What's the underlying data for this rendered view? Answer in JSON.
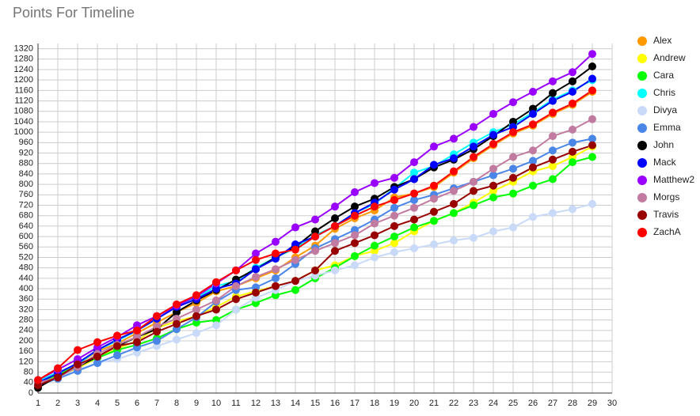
{
  "chart_data": {
    "type": "line",
    "title": "Points For Timeline",
    "x": [
      1,
      2,
      3,
      4,
      5,
      6,
      7,
      8,
      9,
      10,
      11,
      12,
      13,
      14,
      15,
      16,
      17,
      18,
      19,
      20,
      21,
      22,
      23,
      24,
      25,
      26,
      27,
      28,
      29
    ],
    "xlim": [
      1,
      30
    ],
    "xticks": [
      1,
      2,
      3,
      4,
      5,
      6,
      7,
      8,
      9,
      10,
      11,
      12,
      13,
      14,
      15,
      16,
      17,
      18,
      19,
      20,
      21,
      22,
      23,
      24,
      25,
      26,
      27,
      28,
      29,
      30
    ],
    "ylim": [
      0,
      1340
    ],
    "yticks": [
      0,
      40,
      80,
      120,
      160,
      200,
      240,
      280,
      320,
      360,
      400,
      440,
      480,
      520,
      560,
      600,
      640,
      680,
      720,
      760,
      800,
      840,
      880,
      920,
      960,
      1000,
      1040,
      1080,
      1120,
      1160,
      1200,
      1240,
      1280,
      1320
    ],
    "grid": true,
    "legend": "right",
    "series": [
      {
        "name": "Alex",
        "color": "#ff9900",
        "values": [
          40,
          80,
          110,
          160,
          190,
          230,
          270,
          310,
          345,
          390,
          410,
          440,
          470,
          520,
          565,
          630,
          670,
          700,
          750,
          765,
          790,
          845,
          900,
          950,
          995,
          1025,
          1070,
          1105,
          1155
        ]
      },
      {
        "name": "Andrew",
        "color": "#ffff00",
        "values": [
          40,
          65,
          95,
          135,
          170,
          200,
          250,
          275,
          295,
          330,
          370,
          390,
          410,
          430,
          470,
          490,
          525,
          545,
          575,
          620,
          660,
          690,
          730,
          775,
          810,
          850,
          870,
          905,
          945
        ]
      },
      {
        "name": "Cara",
        "color": "#00ff00",
        "values": [
          40,
          70,
          105,
          135,
          165,
          185,
          210,
          245,
          270,
          280,
          320,
          345,
          375,
          395,
          440,
          480,
          525,
          565,
          600,
          635,
          660,
          690,
          720,
          750,
          765,
          795,
          820,
          885,
          905
        ]
      },
      {
        "name": "Chris",
        "color": "#00ffff",
        "values": [
          45,
          80,
          110,
          165,
          200,
          240,
          285,
          330,
          365,
          410,
          430,
          480,
          520,
          555,
          605,
          640,
          690,
          725,
          785,
          845,
          870,
          915,
          960,
          1000,
          1030,
          1075,
          1125,
          1160,
          1200
        ]
      },
      {
        "name": "Divya",
        "color": "#c9daf8",
        "values": [
          40,
          55,
          90,
          115,
          130,
          155,
          180,
          205,
          230,
          260,
          320,
          365,
          395,
          430,
          450,
          470,
          490,
          520,
          540,
          555,
          570,
          585,
          595,
          620,
          635,
          675,
          690,
          705,
          725
        ]
      },
      {
        "name": "Emma",
        "color": "#4a86e8",
        "values": [
          30,
          55,
          85,
          115,
          145,
          175,
          200,
          245,
          290,
          350,
          395,
          405,
          440,
          495,
          555,
          590,
          625,
          665,
          710,
          740,
          760,
          785,
          810,
          835,
          860,
          890,
          930,
          960,
          975
        ]
      },
      {
        "name": "John",
        "color": "#000000",
        "values": [
          20,
          65,
          100,
          140,
          180,
          215,
          245,
          310,
          355,
          395,
          435,
          475,
          520,
          560,
          620,
          670,
          715,
          745,
          790,
          820,
          865,
          895,
          935,
          985,
          1040,
          1090,
          1150,
          1195,
          1252
        ]
      },
      {
        "name": "Mack",
        "color": "#0000ff",
        "values": [
          40,
          75,
          115,
          165,
          205,
          240,
          285,
          330,
          360,
          400,
          420,
          475,
          515,
          570,
          600,
          640,
          690,
          730,
          780,
          820,
          875,
          900,
          945,
          990,
          1020,
          1070,
          1120,
          1155,
          1205
        ]
      },
      {
        "name": "Matthew2",
        "color": "#9900ff",
        "values": [
          50,
          90,
          130,
          175,
          215,
          260,
          295,
          335,
          370,
          420,
          470,
          535,
          580,
          635,
          665,
          715,
          770,
          805,
          825,
          885,
          945,
          975,
          1020,
          1070,
          1115,
          1155,
          1195,
          1230,
          1300
        ]
      },
      {
        "name": "Morgs",
        "color": "#c27ba0",
        "values": [
          40,
          60,
          100,
          150,
          185,
          215,
          255,
          285,
          320,
          355,
          410,
          445,
          475,
          510,
          545,
          575,
          605,
          650,
          680,
          710,
          745,
          775,
          810,
          860,
          905,
          930,
          985,
          1010,
          1050
        ]
      },
      {
        "name": "Travis",
        "color": "#990000",
        "values": [
          30,
          60,
          110,
          140,
          180,
          195,
          235,
          265,
          295,
          320,
          360,
          385,
          410,
          430,
          470,
          545,
          575,
          605,
          640,
          665,
          695,
          725,
          775,
          795,
          825,
          865,
          895,
          925,
          950
        ]
      },
      {
        "name": "ZachA",
        "color": "#ff0000",
        "values": [
          50,
          95,
          165,
          195,
          220,
          240,
          295,
          340,
          375,
          425,
          470,
          510,
          535,
          550,
          600,
          640,
          680,
          715,
          740,
          765,
          795,
          850,
          905,
          955,
          1000,
          1030,
          1075,
          1110,
          1160
        ]
      }
    ]
  }
}
